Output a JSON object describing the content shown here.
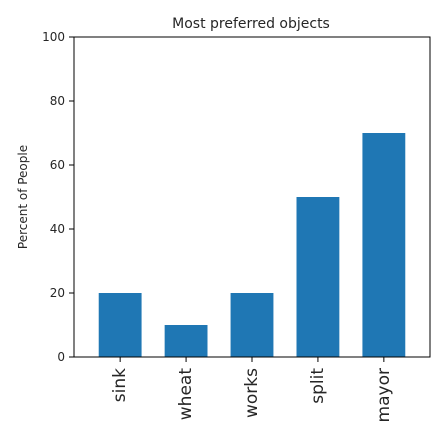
{
  "chart_data": {
    "type": "bar",
    "title": "Most preferred objects",
    "xlabel": "",
    "ylabel": "Percent of People",
    "categories": [
      "sink",
      "wheat",
      "works",
      "split",
      "mayor"
    ],
    "values": [
      20,
      10,
      20,
      50,
      70
    ],
    "ylim": [
      0,
      100
    ],
    "yticks": [
      0,
      20,
      40,
      60,
      80,
      100
    ],
    "bar_color": "#1f77b4",
    "grid": false,
    "legend": "none"
  }
}
